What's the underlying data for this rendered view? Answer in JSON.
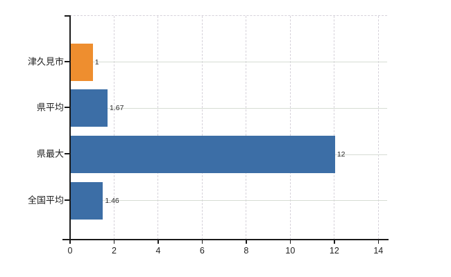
{
  "chart_data": {
    "type": "bar",
    "orientation": "horizontal",
    "title": "",
    "xlabel": "",
    "ylabel": "",
    "categories": [
      "津久見市",
      "県平均",
      "県最大",
      "全国平均"
    ],
    "values": [
      1,
      1.67,
      12,
      1.46
    ],
    "value_labels": [
      "1",
      "1.67",
      "12",
      "1.46"
    ],
    "bar_colors": [
      "#ee8e2f",
      "#3c6ea6",
      "#3c6ea6",
      "#3c6ea6"
    ],
    "xlim": [
      0,
      14.4
    ],
    "x_ticks": [
      0,
      2,
      4,
      6,
      8,
      10,
      12,
      14
    ],
    "x_tick_labels": [
      "0",
      "2",
      "4",
      "6",
      "8",
      "10",
      "12",
      "14"
    ],
    "grid": true,
    "legend": false,
    "colors": {
      "background": "#ffffff",
      "axis": "#1a1a1a",
      "grid_horizontal": "#d6dcd4",
      "grid_vertical": "#d6d2da",
      "category_label": "#1f1f1f",
      "tick_label": "#1f1f1f",
      "value_label": "#2a2a2a"
    }
  }
}
